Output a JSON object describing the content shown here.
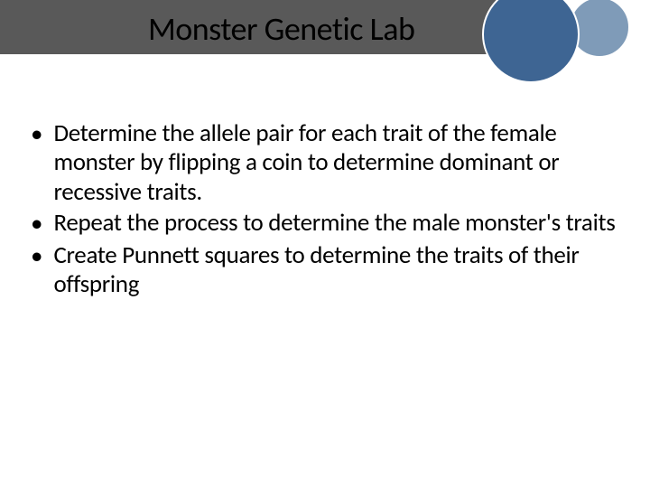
{
  "slide": {
    "title": "Monster Genetic Lab",
    "bullets": [
      "Determine the allele pair for each trait of the female monster by flipping a coin to determine dominant or recessive traits.",
      "Repeat the process to determine the male monster's traits",
      "Create Punnett squares to determine the traits of their offspring"
    ],
    "colors": {
      "header_bar": "#595959",
      "circle_large": "#3e6593",
      "circle_small": "#7f9bb8",
      "background": "#ffffff",
      "text": "#000000"
    },
    "typography": {
      "title_fontsize": 36,
      "body_fontsize": 27,
      "font_family": "Calibri"
    }
  }
}
